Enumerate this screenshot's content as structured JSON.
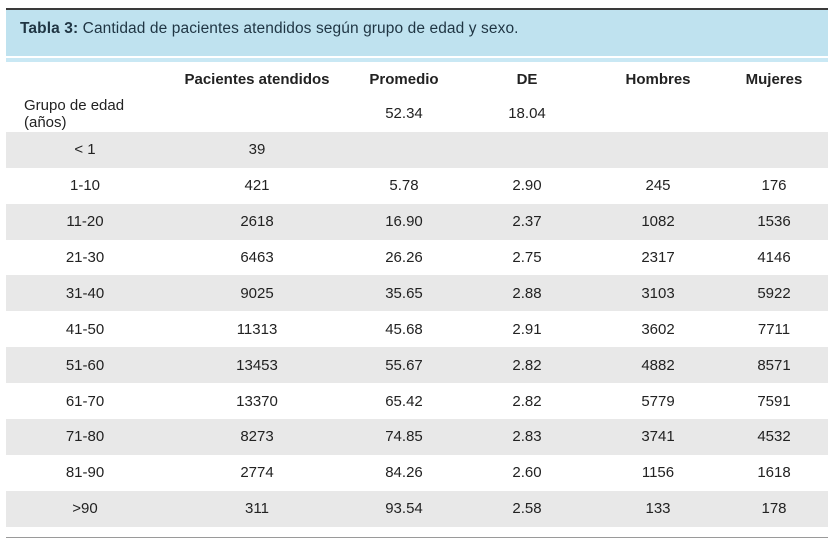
{
  "title": {
    "label": "Tabla 3:",
    "text": "Cantidad de pacientes atendidos según grupo de edad y sexo."
  },
  "columns": [
    "",
    "Pacientes atendidos",
    "Promedio",
    "DE",
    "Hombres",
    "Mujeres"
  ],
  "rows": [
    [
      "Grupo de edad (años)",
      "",
      "52.34",
      "18.04",
      "",
      ""
    ],
    [
      "< 1",
      "39",
      "",
      "",
      "",
      ""
    ],
    [
      "1-10",
      "421",
      "5.78",
      "2.90",
      "245",
      "176"
    ],
    [
      "11-20",
      "2618",
      "16.90",
      "2.37",
      "1082",
      "1536"
    ],
    [
      "21-30",
      "6463",
      "26.26",
      "2.75",
      "2317",
      "4146"
    ],
    [
      "31-40",
      "9025",
      "35.65",
      "2.88",
      "3103",
      "5922"
    ],
    [
      "41-50",
      "11313",
      "45.68",
      "2.91",
      "3602",
      "7711"
    ],
    [
      "51-60",
      "13453",
      "55.67",
      "2.82",
      "4882",
      "8571"
    ],
    [
      "61-70",
      "13370",
      "65.42",
      "2.82",
      "5779",
      "7591"
    ],
    [
      "71-80",
      "8273",
      "74.85",
      "2.83",
      "3741",
      "4532"
    ],
    [
      "81-90",
      "2774",
      "84.26",
      "2.60",
      "1156",
      "1618"
    ],
    [
      ">90",
      "311",
      "93.54",
      "2.58",
      "133",
      "178"
    ]
  ],
  "colors": {
    "title_background": "#bfe2ef",
    "header_strip": "#c9e8f4",
    "stripe_row": "#e8e8e8"
  }
}
